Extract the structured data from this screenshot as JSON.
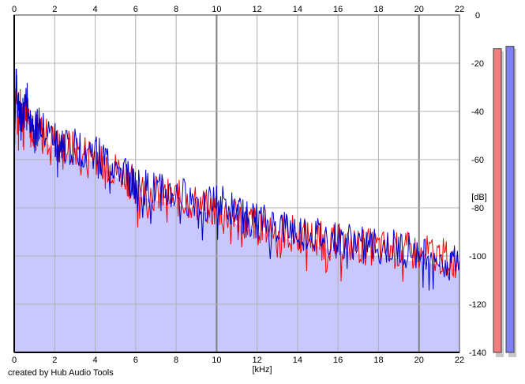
{
  "credit": "created by Hub Audio Tools",
  "chart_data": {
    "type": "area",
    "xlabel": "[kHz]",
    "ylabel": "[dB]",
    "xlim": [
      0,
      22
    ],
    "ylim": [
      -140,
      0
    ],
    "x_ticks": [
      "0",
      "2",
      "4",
      "6",
      "8",
      "10",
      "12",
      "14",
      "16",
      "18",
      "20",
      "22"
    ],
    "y_ticks": [
      "0",
      "-20",
      "-40",
      "-60",
      "-80",
      "-100",
      "-120",
      "-140"
    ],
    "grid": true,
    "series": [
      {
        "color": "#ff0000",
        "x": [
          0,
          0.1,
          0.2,
          0.3,
          0.4,
          0.5,
          0.6,
          0.8,
          1.0,
          1.2,
          1.5,
          2.0,
          2.2,
          2.5,
          3.0,
          3.5,
          4.0,
          4.3,
          4.7,
          5.0,
          5.5,
          5.8,
          6.0,
          6.5,
          7.0,
          7.5,
          8.0,
          8.5,
          9.0,
          9.5,
          10.0,
          10.5,
          11.0,
          11.3,
          11.7,
          12.0,
          12.5,
          13.0,
          13.5,
          14.0,
          14.5,
          15.0,
          15.5,
          16.0,
          16.5,
          17.0,
          17.5,
          18.0,
          18.5,
          19.0,
          19.5,
          20.0,
          20.5,
          21.0,
          21.5,
          22.0
        ],
        "y": [
          -55,
          -28,
          -42,
          -38,
          -45,
          -40,
          -36,
          -44,
          -48,
          -47,
          -50,
          -52,
          -55,
          -54,
          -56,
          -57,
          -58,
          -60,
          -62,
          -64,
          -66,
          -70,
          -72,
          -73,
          -74,
          -75,
          -76,
          -77,
          -78,
          -80,
          -81,
          -82,
          -84,
          -85,
          -86,
          -87,
          -88,
          -89,
          -90,
          -91,
          -92,
          -93,
          -94,
          -95,
          -95,
          -96,
          -96,
          -97,
          -97,
          -98,
          -98,
          -99,
          -99,
          -100,
          -101,
          -102
        ]
      },
      {
        "color": "#0000cc",
        "x": [
          0,
          0.1,
          0.2,
          0.3,
          0.4,
          0.5,
          0.6,
          0.8,
          1.0,
          1.2,
          1.5,
          2.0,
          2.2,
          2.5,
          3.0,
          3.5,
          4.0,
          4.3,
          4.7,
          5.0,
          5.5,
          5.8,
          6.0,
          6.5,
          7.0,
          7.5,
          8.0,
          8.5,
          9.0,
          9.5,
          10.0,
          10.5,
          11.0,
          11.3,
          11.7,
          12.0,
          12.5,
          13.0,
          13.5,
          14.0,
          14.5,
          15.0,
          15.5,
          16.0,
          16.5,
          17.0,
          17.5,
          18.0,
          18.5,
          19.0,
          19.5,
          20.0,
          20.5,
          21.0,
          21.5,
          22.0
        ],
        "y": [
          -50,
          -25,
          -40,
          -36,
          -44,
          -38,
          -34,
          -42,
          -47,
          -46,
          -49,
          -51,
          -54,
          -53,
          -55,
          -56,
          -57,
          -59,
          -61,
          -63,
          -66,
          -69,
          -71,
          -72,
          -73,
          -74,
          -75,
          -76,
          -77,
          -78,
          -78,
          -79,
          -83,
          -84,
          -85,
          -86,
          -87,
          -88,
          -89,
          -90,
          -91,
          -92,
          -93,
          -94,
          -94,
          -95,
          -96,
          -96,
          -97,
          -97,
          -98,
          -98,
          -99,
          -100,
          -101,
          -102
        ]
      }
    ],
    "level_meters": [
      {
        "color": "#f08080",
        "value_db": -14
      },
      {
        "color": "#8080f0",
        "value_db": -13
      }
    ]
  }
}
